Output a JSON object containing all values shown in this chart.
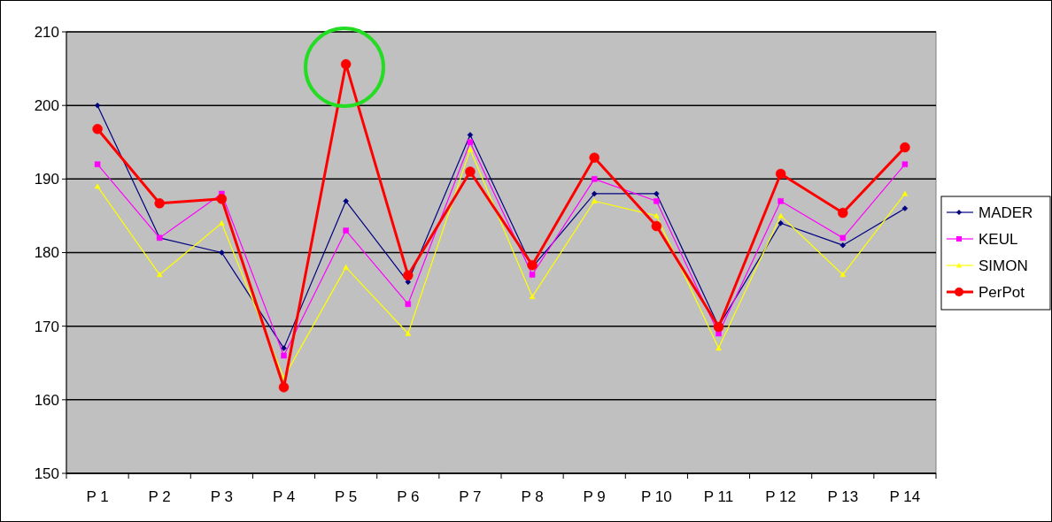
{
  "chart_data": {
    "type": "line",
    "categories": [
      "P 1",
      "P 2",
      "P 3",
      "P 4",
      "P 5",
      "P 6",
      "P 7",
      "P 8",
      "P 9",
      "P 10",
      "P 11",
      "P 12",
      "P 13",
      "P 14"
    ],
    "series": [
      {
        "name": "MADER",
        "color": "#000080",
        "marker": "diamond",
        "values": [
          200,
          182,
          180,
          167,
          187,
          176,
          196,
          178,
          188,
          188,
          170,
          184,
          181,
          186
        ]
      },
      {
        "name": "KEUL",
        "color": "#ff00ff",
        "marker": "square",
        "values": [
          192,
          182,
          188,
          166,
          183,
          173,
          195,
          177,
          190,
          187,
          169,
          187,
          182,
          192
        ]
      },
      {
        "name": "SIMON",
        "color": "#ffff00",
        "marker": "triangle",
        "values": [
          189,
          177,
          184,
          163,
          178,
          169,
          194,
          174,
          187,
          185,
          167,
          185,
          177,
          188
        ]
      },
      {
        "name": "PerPot",
        "color": "#ff0000",
        "marker": "circle",
        "values": [
          196.8,
          186.7,
          187.3,
          161.7,
          205.6,
          176.9,
          191,
          178.3,
          192.9,
          183.6,
          169.9,
          190.7,
          185.4,
          194.3
        ]
      }
    ],
    "ylim": [
      150,
      210
    ],
    "yticks": [
      150,
      160,
      170,
      180,
      190,
      200,
      210
    ],
    "grid": "y",
    "legend": "right"
  }
}
